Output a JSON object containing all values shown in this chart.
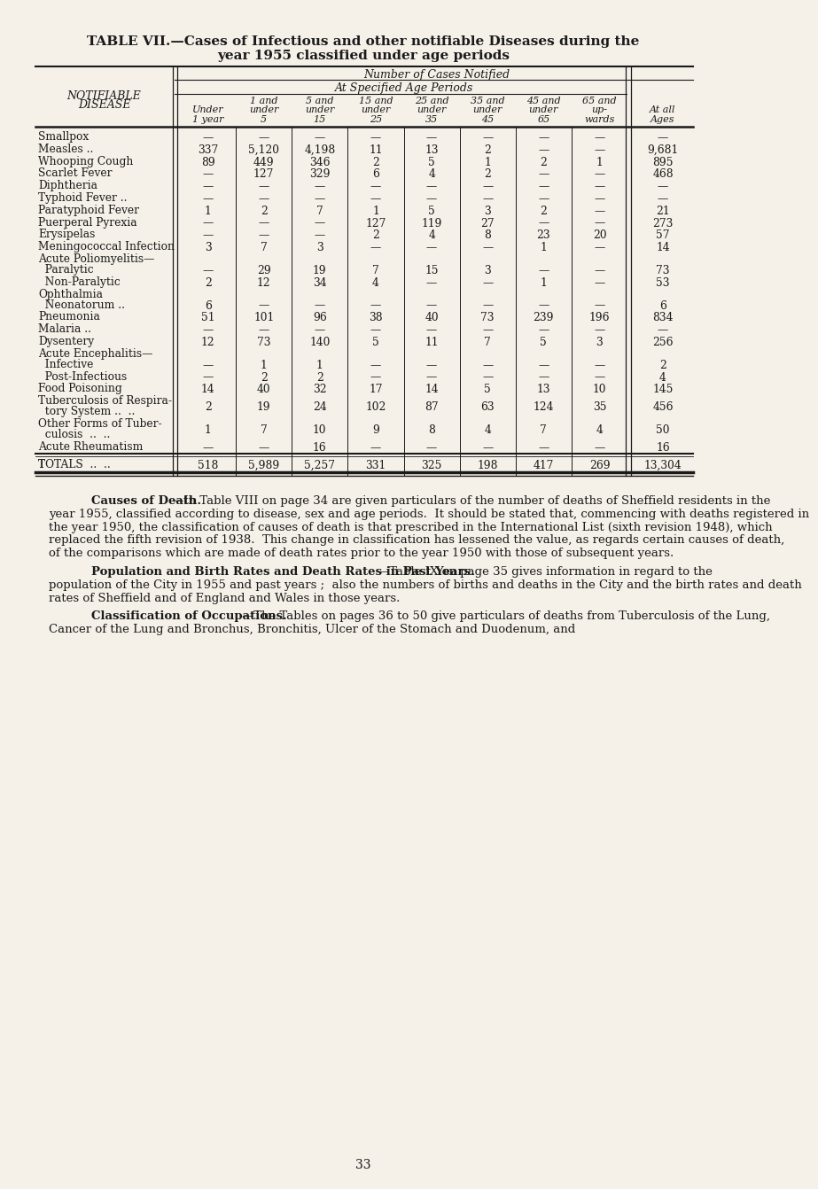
{
  "title_line1": "TABLE VII.—Cases of Infectious and other notifiable Diseases during the",
  "title_line2": "year 1955 classified under age periods",
  "bg_color": "#f5f0e8",
  "text_color": "#1a1a1a",
  "header_number_of_cases": "Number of Cases Notified",
  "header_at_specified": "At Specified Age Periods",
  "rows": [
    {
      "label1": "Smallpox",
      "label2": "  ..  ..",
      "vals": [
        "—",
        "—",
        "—",
        "—",
        "—",
        "—",
        "—",
        "—",
        "—"
      ],
      "multiline": false,
      "section": false
    },
    {
      "label1": "Measles ..",
      "label2": "  ..",
      "vals": [
        "337",
        "5,120",
        "4,198",
        "11",
        "13",
        "2",
        "—",
        "—",
        "9,681"
      ],
      "multiline": false,
      "section": false
    },
    {
      "label1": "Whooping Cough",
      "label2": "  ..",
      "vals": [
        "89",
        "449",
        "346",
        "2",
        "5",
        "1",
        "2",
        "1",
        "895"
      ],
      "multiline": false,
      "section": false
    },
    {
      "label1": "Scarlet Fever",
      "label2": "  ..  ..",
      "vals": [
        "—",
        "127",
        "329",
        "6",
        "4",
        "2",
        "—",
        "—",
        "468"
      ],
      "multiline": false,
      "section": false
    },
    {
      "label1": "Diphtheria",
      "label2": "  ..  ..",
      "vals": [
        "—",
        "—",
        "—",
        "—",
        "—",
        "—",
        "—",
        "—",
        "—"
      ],
      "multiline": false,
      "section": false
    },
    {
      "label1": "Typhoid Fever ..",
      "label2": "  ..",
      "vals": [
        "—",
        "—",
        "—",
        "—",
        "—",
        "—",
        "—",
        "—",
        "—"
      ],
      "multiline": false,
      "section": false
    },
    {
      "label1": "Paratyphoid Fever",
      "label2": "  ..",
      "vals": [
        "1",
        "2",
        "7",
        "1",
        "5",
        "3",
        "2",
        "—",
        "21"
      ],
      "multiline": false,
      "section": false
    },
    {
      "label1": "Puerperal Pyrexia",
      "label2": "  ..",
      "vals": [
        "—",
        "—",
        "—",
        "127",
        "119",
        "27",
        "—",
        "—",
        "273"
      ],
      "multiline": false,
      "section": false
    },
    {
      "label1": "Erysipelas",
      "label2": "  ..  ..",
      "vals": [
        "—",
        "—",
        "—",
        "2",
        "4",
        "8",
        "23",
        "20",
        "57"
      ],
      "multiline": false,
      "section": false
    },
    {
      "label1": "Meningococcal Infection",
      "label2": "",
      "vals": [
        "3",
        "7",
        "3",
        "—",
        "—",
        "—",
        "1",
        "—",
        "14"
      ],
      "multiline": false,
      "section": false
    },
    {
      "label1": "Acute Poliomyelitis—",
      "label2": "",
      "vals": [
        "",
        "",
        "",
        "",
        "",
        "",
        "",
        "",
        ""
      ],
      "multiline": false,
      "section": true
    },
    {
      "label1": "  Paralytic",
      "label2": "  ..  ..",
      "vals": [
        "—",
        "29",
        "19",
        "7",
        "15",
        "3",
        "—",
        "—",
        "73"
      ],
      "multiline": false,
      "section": false
    },
    {
      "label1": "  Non-Paralytic",
      "label2": "  ..",
      "vals": [
        "2",
        "12",
        "34",
        "4",
        "—",
        "—",
        "1",
        "—",
        "53"
      ],
      "multiline": false,
      "section": false
    },
    {
      "label1": "Ophthalmia",
      "label2": "",
      "vals": [
        "",
        "",
        "",
        "",
        "",
        "",
        "",
        "",
        ""
      ],
      "multiline": false,
      "section": true
    },
    {
      "label1": "  Neonatorum ..",
      "label2": "  ..",
      "vals": [
        "6",
        "—",
        "—",
        "—",
        "—",
        "—",
        "—",
        "—",
        "6"
      ],
      "multiline": false,
      "section": false
    },
    {
      "label1": "Pneumonia",
      "label2": "  ..  ..",
      "vals": [
        "51",
        "101",
        "96",
        "38",
        "40",
        "73",
        "239",
        "196",
        "834"
      ],
      "multiline": false,
      "section": false
    },
    {
      "label1": "Malaria ..",
      "label2": "  ..  ..",
      "vals": [
        "—",
        "—",
        "—",
        "—",
        "—",
        "—",
        "—",
        "—",
        "—"
      ],
      "multiline": false,
      "section": false
    },
    {
      "label1": "Dysentery",
      "label2": "  ..  ..",
      "vals": [
        "12",
        "73",
        "140",
        "5",
        "11",
        "7",
        "5",
        "3",
        "256"
      ],
      "multiline": false,
      "section": false
    },
    {
      "label1": "Acute Encephalitis—",
      "label2": "",
      "vals": [
        "",
        "",
        "",
        "",
        "",
        "",
        "",
        "",
        ""
      ],
      "multiline": false,
      "section": true
    },
    {
      "label1": "  Infective",
      "label2": "  ..  ..",
      "vals": [
        "—",
        "1",
        "1",
        "—",
        "—",
        "—",
        "—",
        "—",
        "2"
      ],
      "multiline": false,
      "section": false
    },
    {
      "label1": "  Post-Infectious",
      "label2": "  ..",
      "vals": [
        "—",
        "2",
        "2",
        "—",
        "—",
        "—",
        "—",
        "—",
        "4"
      ],
      "multiline": false,
      "section": false
    },
    {
      "label1": "Food Poisoning",
      "label2": "  ..",
      "vals": [
        "14",
        "40",
        "32",
        "17",
        "14",
        "5",
        "13",
        "10",
        "145"
      ],
      "multiline": false,
      "section": false
    },
    {
      "label1": "Tuberculosis of Respira-",
      "label2": "  tory System ..  ..",
      "vals": [
        "2",
        "19",
        "24",
        "102",
        "87",
        "63",
        "124",
        "35",
        "456"
      ],
      "multiline": true,
      "section": false
    },
    {
      "label1": "Other Forms of Tuber-",
      "label2": "  culosis  ..  ..",
      "vals": [
        "1",
        "7",
        "10",
        "9",
        "8",
        "4",
        "7",
        "4",
        "50"
      ],
      "multiline": true,
      "section": false
    },
    {
      "label1": "Acute Rheumatism",
      "label2": "  ..",
      "vals": [
        "—",
        "—",
        "16",
        "—",
        "—",
        "—",
        "—",
        "—",
        "16"
      ],
      "multiline": false,
      "section": false
    }
  ],
  "totals_vals": [
    "518",
    "5,989",
    "5,257",
    "331",
    "325",
    "198",
    "417",
    "269",
    "13,304"
  ],
  "body_paragraphs": [
    {
      "bold_part": "Causes of Death.",
      "rest": "—In Table VIII on page 34 are given particulars of the number of deaths of Sheffield residents in the year 1955, classified according to disease, sex and age periods.  It should be stated that, commencing with deaths registered in the year 1950, the classification of causes of death is that prescribed in the International List (sixth revision 1948), which replaced the fifth revision of 1938.  This change in classification has lessened the value, as regards certain causes of death, of the comparisons which are made of death rates prior to the year 1950 with those of subsequent years."
    },
    {
      "bold_part": "Population and Birth Rates and Death Rates in Past Years.",
      "rest": "—Table IX on page 35 gives information in regard to the population of the City in 1955 and past years ;  also the numbers of births and deaths in the City and the birth rates and death rates of Sheffield and of England and Wales in those years."
    },
    {
      "bold_part": "Classification of Occupations.",
      "rest": "—The Tables on pages 36 to 50 give particulars of deaths from Tuberculosis of the Lung, Cancer of the Lung and Bronchus, Bronchitis, Ulcer of the Stomach and Duodenum, and"
    }
  ],
  "page_number": "33"
}
